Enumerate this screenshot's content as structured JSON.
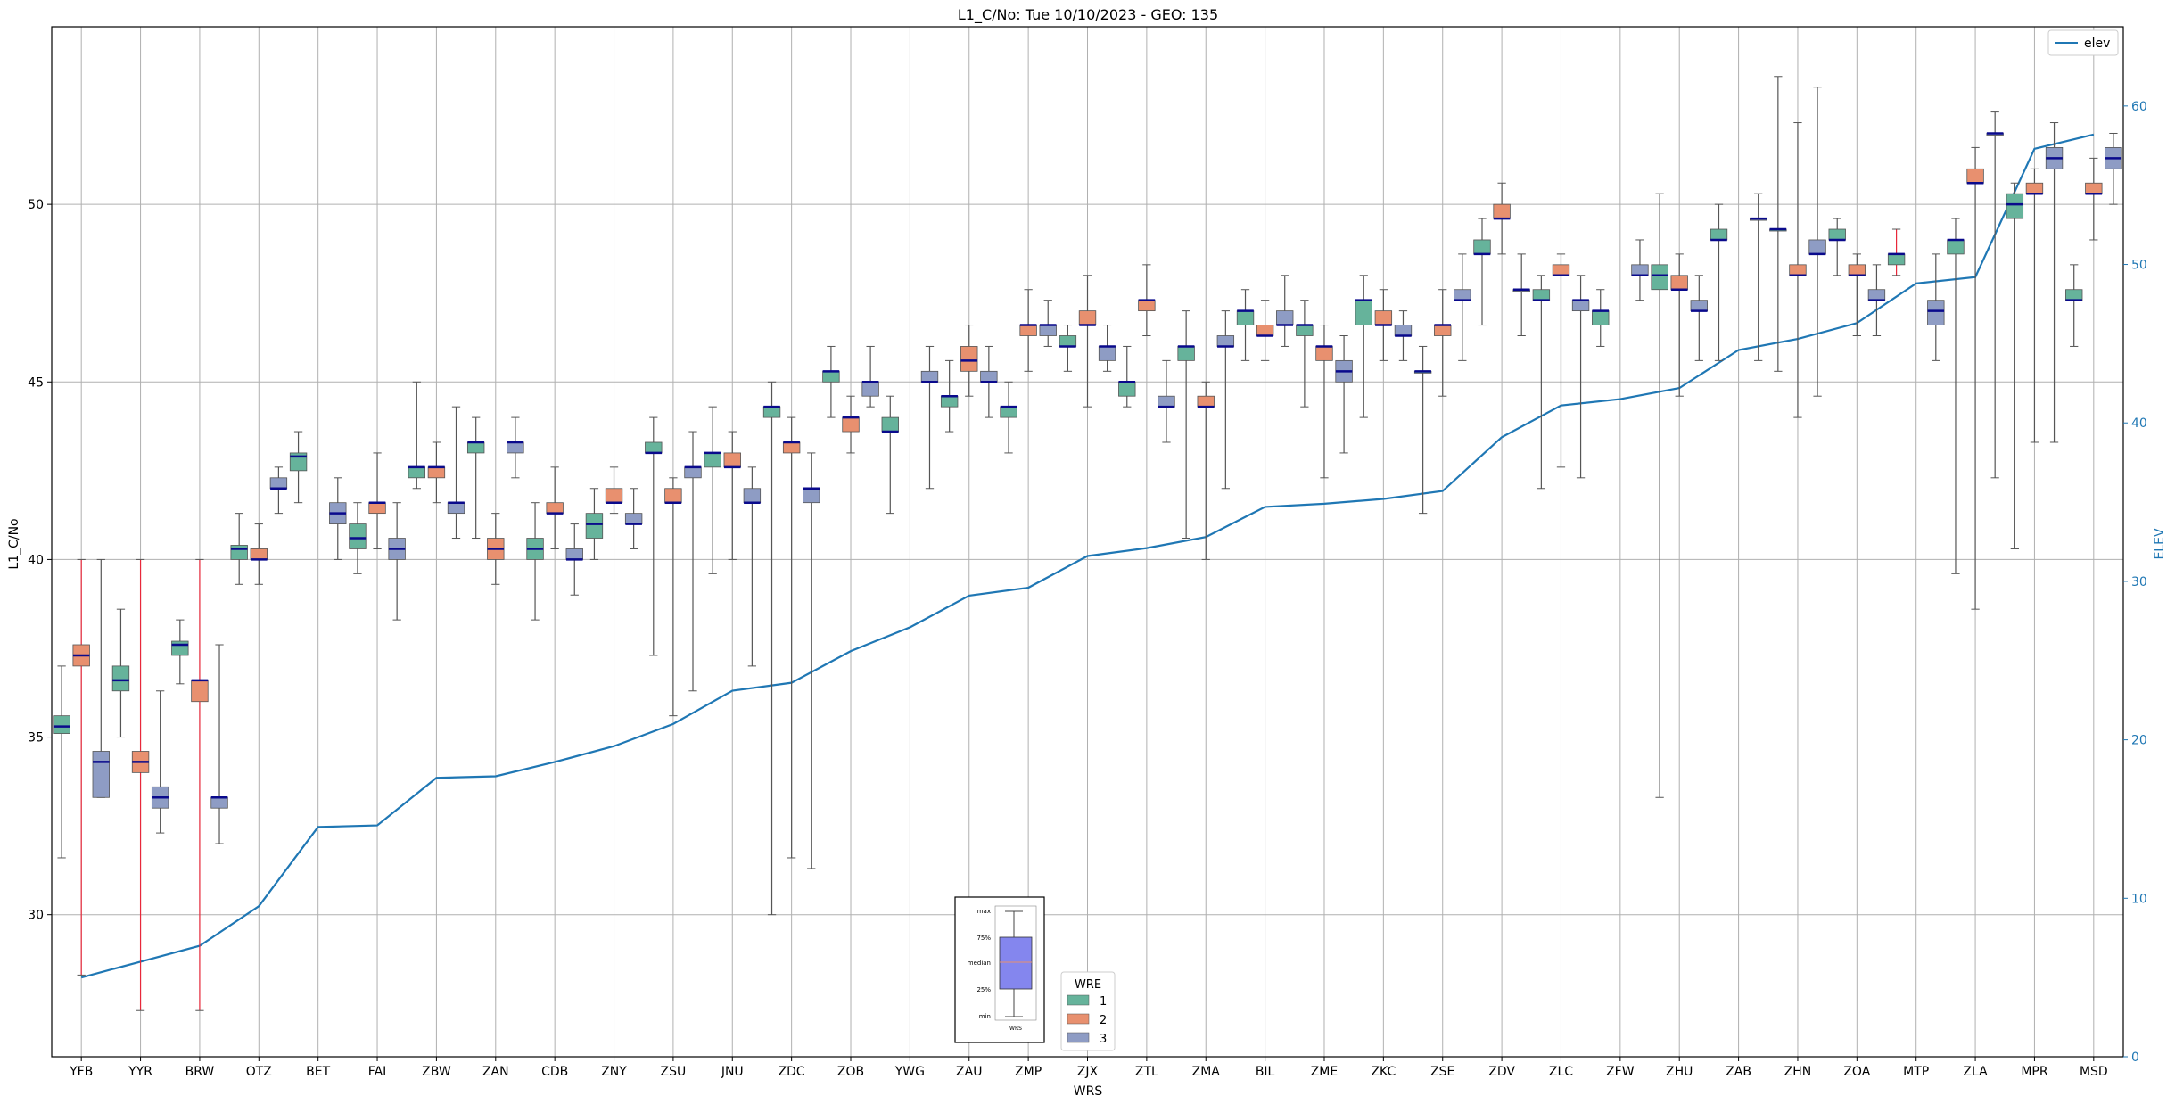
{
  "chart_data": {
    "type": "box",
    "title": "L1_C/No: Tue 10/10/2023 - GEO: 135",
    "xlabel": "WRS",
    "ylabel": "L1_C/No",
    "y2label": "ELEV",
    "ylim": [
      26,
      55
    ],
    "y2lim": [
      0,
      65
    ],
    "yticks": [
      30,
      35,
      40,
      45,
      50
    ],
    "y2ticks": [
      0,
      10,
      20,
      30,
      40,
      50,
      60
    ],
    "grid": true,
    "legend_wre": {
      "title": "WRE",
      "entries": [
        "1",
        "2",
        "3"
      ],
      "colors": [
        "#66b39b",
        "#e8906f",
        "#8e9cc4"
      ]
    },
    "legend_line": {
      "label": "elev",
      "color": "#1f77b4",
      "position": "top-right"
    },
    "inset": {
      "labels": [
        "max",
        "75%",
        "median",
        "25%",
        "min"
      ],
      "xlabel": "WRS"
    },
    "categories": [
      "YFB",
      "YYR",
      "BRW",
      "OTZ",
      "BET",
      "FAI",
      "ZBW",
      "ZAN",
      "CDB",
      "ZNY",
      "ZSU",
      "JNU",
      "ZDC",
      "ZOB",
      "YWG",
      "ZAU",
      "ZMP",
      "ZJX",
      "ZTL",
      "ZMA",
      "BIL",
      "ZME",
      "ZKC",
      "ZSE",
      "ZDV",
      "ZLC",
      "ZFW",
      "ZHU",
      "ZAB",
      "ZHN",
      "ZOA",
      "MTP",
      "ZLA",
      "MPR",
      "MSD"
    ],
    "elev": [
      5,
      6,
      7,
      9.5,
      14.5,
      14.6,
      17.6,
      17.7,
      18.6,
      19.6,
      21,
      23.1,
      23.6,
      25.6,
      27.1,
      29.1,
      29.6,
      31.6,
      32.1,
      32.8,
      34.7,
      34.9,
      35.2,
      35.7,
      39.1,
      41.1,
      41.5,
      42.2,
      44.6,
      45.3,
      46.3,
      48.8,
      49.2,
      57.3,
      58.2
    ],
    "boxes": {
      "1": [
        [
          31.6,
          35.1,
          35.3,
          35.6,
          37.0
        ],
        [
          35.0,
          36.3,
          36.6,
          37.0,
          38.6
        ],
        [
          36.5,
          37.3,
          37.6,
          37.7,
          38.3
        ],
        [
          39.3,
          40.0,
          40.3,
          40.4,
          41.3
        ],
        [
          41.6,
          42.5,
          42.9,
          43.0,
          43.6
        ],
        [
          39.6,
          40.3,
          40.6,
          41.0,
          41.6
        ],
        [
          42.0,
          42.3,
          42.6,
          42.6,
          45.0
        ],
        [
          40.6,
          43.0,
          43.3,
          43.3,
          44.0
        ],
        [
          38.3,
          40.0,
          40.3,
          40.6,
          41.6
        ],
        [
          40.0,
          40.6,
          41.0,
          41.3,
          42.0
        ],
        [
          37.3,
          43.0,
          43.0,
          43.3,
          44.0
        ],
        [
          39.6,
          42.6,
          43.0,
          43.0,
          44.3
        ],
        [
          30.0,
          44.0,
          44.3,
          44.3,
          45.0
        ],
        [
          44.0,
          45.0,
          45.3,
          45.3,
          46.0
        ],
        [
          41.3,
          43.6,
          43.6,
          44.0,
          44.6
        ],
        [
          43.6,
          44.3,
          44.6,
          44.6,
          45.6
        ],
        [
          43.0,
          44.0,
          44.3,
          44.3,
          45.0
        ],
        [
          45.3,
          46.0,
          46.0,
          46.3,
          46.6
        ],
        [
          44.3,
          44.6,
          45.0,
          45.0,
          46.0
        ],
        [
          40.6,
          45.6,
          46.0,
          46.0,
          47.0
        ],
        [
          45.6,
          46.6,
          47.0,
          47.0,
          47.6
        ],
        [
          44.3,
          46.3,
          46.6,
          46.6,
          47.3
        ],
        [
          44.0,
          46.6,
          47.3,
          47.3,
          48.0
        ],
        [
          41.3,
          45.3,
          45.3,
          45.3,
          46.0
        ],
        [
          46.6,
          48.6,
          48.6,
          49.0,
          49.6
        ],
        [
          42.0,
          47.3,
          47.3,
          47.6,
          48.0
        ],
        [
          46.0,
          46.6,
          47.0,
          47.0,
          47.6
        ],
        [
          33.3,
          47.6,
          48.0,
          48.3,
          50.3
        ],
        [
          45.6,
          49.0,
          49.0,
          49.3,
          50.0
        ],
        [
          45.3,
          49.3,
          49.3,
          49.3,
          53.6
        ],
        [
          48.0,
          49.0,
          49.0,
          49.3,
          49.6
        ],
        [
          48.0,
          48.3,
          48.6,
          48.6,
          49.3
        ],
        [
          39.6,
          48.6,
          49.0,
          49.0,
          49.6
        ],
        [
          40.3,
          49.6,
          50.0,
          50.3,
          50.6
        ],
        [
          46.0,
          47.3,
          47.3,
          47.6,
          48.3
        ]
      ],
      "2": [
        [
          28.3,
          37.0,
          37.3,
          37.6,
          40.0
        ],
        [
          27.3,
          34.0,
          34.3,
          34.6,
          40.0
        ],
        [
          27.3,
          36.0,
          36.6,
          36.6,
          40.0
        ],
        [
          39.3,
          40.0,
          40.0,
          40.3,
          41.0
        ],
        null,
        [
          40.3,
          41.3,
          41.6,
          41.6,
          43.0
        ],
        [
          41.6,
          42.3,
          42.6,
          42.6,
          43.3
        ],
        [
          39.3,
          40.0,
          40.3,
          40.6,
          41.3
        ],
        [
          40.3,
          41.3,
          41.3,
          41.6,
          42.6
        ],
        [
          41.3,
          41.6,
          41.6,
          42.0,
          42.6
        ],
        [
          35.6,
          41.6,
          41.6,
          42.0,
          42.3
        ],
        [
          40.0,
          42.6,
          42.6,
          43.0,
          43.6
        ],
        [
          31.6,
          43.0,
          43.3,
          43.3,
          44.0
        ],
        [
          43.0,
          43.6,
          44.0,
          44.0,
          44.6
        ],
        null,
        [
          44.6,
          45.3,
          45.6,
          46.0,
          46.6
        ],
        [
          45.3,
          46.3,
          46.6,
          46.6,
          47.6
        ],
        [
          44.3,
          46.6,
          46.6,
          47.0,
          48.0
        ],
        [
          46.3,
          47.0,
          47.3,
          47.3,
          48.3
        ],
        [
          40.0,
          44.3,
          44.3,
          44.6,
          45.0
        ],
        [
          45.6,
          46.3,
          46.3,
          46.6,
          47.3
        ],
        [
          42.3,
          45.6,
          46.0,
          46.0,
          46.6
        ],
        [
          45.6,
          46.6,
          46.6,
          47.0,
          47.6
        ],
        [
          44.6,
          46.3,
          46.6,
          46.6,
          47.6
        ],
        [
          48.6,
          49.6,
          49.6,
          50.0,
          50.6
        ],
        [
          42.6,
          48.0,
          48.0,
          48.3,
          48.6
        ],
        null,
        [
          44.6,
          47.6,
          47.6,
          48.0,
          48.6
        ],
        null,
        [
          44.0,
          48.0,
          48.0,
          48.3,
          52.3
        ],
        [
          46.3,
          48.0,
          48.0,
          48.3,
          48.6
        ],
        null,
        [
          38.6,
          50.6,
          50.6,
          51.0,
          51.6
        ],
        [
          43.3,
          50.3,
          50.3,
          50.6,
          51.0
        ],
        [
          49.0,
          50.3,
          50.3,
          50.6,
          51.3
        ]
      ],
      "3": [
        [
          33.3,
          33.3,
          34.3,
          34.6,
          40.0
        ],
        [
          32.3,
          33.0,
          33.3,
          33.6,
          36.3
        ],
        [
          32.0,
          33.0,
          33.3,
          33.3,
          37.6
        ],
        [
          41.3,
          42.0,
          42.0,
          42.3,
          42.6
        ],
        [
          40.0,
          41.0,
          41.3,
          41.6,
          42.3
        ],
        [
          38.3,
          40.0,
          40.3,
          40.6,
          41.6
        ],
        [
          40.6,
          41.3,
          41.6,
          41.6,
          44.3
        ],
        [
          42.3,
          43.0,
          43.3,
          43.3,
          44.0
        ],
        [
          39.0,
          40.0,
          40.0,
          40.3,
          41.0
        ],
        [
          40.3,
          41.0,
          41.0,
          41.3,
          42.0
        ],
        [
          36.3,
          42.3,
          42.6,
          42.6,
          43.6
        ],
        [
          37.0,
          41.6,
          41.6,
          42.0,
          42.6
        ],
        [
          31.3,
          41.6,
          42.0,
          42.0,
          43.0
        ],
        [
          44.3,
          44.6,
          45.0,
          45.0,
          46.0
        ],
        [
          42.0,
          45.0,
          45.0,
          45.3,
          46.0
        ],
        [
          44.0,
          45.0,
          45.0,
          45.3,
          46.0
        ],
        [
          46.0,
          46.3,
          46.6,
          46.6,
          47.3
        ],
        [
          45.3,
          45.6,
          46.0,
          46.0,
          46.6
        ],
        [
          43.3,
          44.3,
          44.3,
          44.6,
          45.6
        ],
        [
          42.0,
          46.0,
          46.0,
          46.3,
          47.0
        ],
        [
          46.0,
          46.6,
          46.6,
          47.0,
          48.0
        ],
        [
          43.0,
          45.0,
          45.3,
          45.6,
          46.3
        ],
        [
          45.6,
          46.3,
          46.3,
          46.6,
          47.0
        ],
        [
          45.6,
          47.3,
          47.3,
          47.6,
          48.6
        ],
        [
          46.3,
          47.6,
          47.6,
          47.6,
          48.6
        ],
        [
          42.3,
          47.0,
          47.3,
          47.3,
          48.0
        ],
        [
          47.3,
          48.0,
          48.0,
          48.3,
          49.0
        ],
        [
          45.6,
          47.0,
          47.0,
          47.3,
          48.0
        ],
        [
          45.6,
          49.6,
          49.6,
          49.6,
          50.3
        ],
        [
          44.6,
          48.6,
          48.6,
          49.0,
          53.3
        ],
        [
          46.3,
          47.3,
          47.3,
          47.6,
          48.3
        ],
        [
          45.6,
          46.6,
          47.0,
          47.3,
          48.6
        ],
        [
          42.3,
          52.0,
          52.0,
          52.0,
          52.6
        ],
        [
          43.3,
          51.0,
          51.3,
          51.6,
          52.3
        ],
        [
          50.0,
          51.0,
          51.3,
          51.6,
          52.0
        ]
      ]
    },
    "red_whisker_series": [
      [
        0,
        "2"
      ],
      [
        1,
        "2"
      ],
      [
        2,
        "2"
      ],
      [
        31,
        "1"
      ]
    ]
  }
}
